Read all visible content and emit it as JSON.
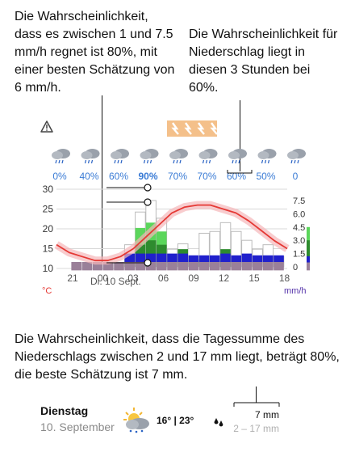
{
  "callouts": {
    "left": "Die Wahrscheinlichkeit, dass es zwischen 1 und 7.5 mm/h regnet ist 80%, mit einer besten Schätzung von 6 mm/h.",
    "right": "Die Wahrscheinlichkeit für Niederschlag liegt in diesen 3 Stunden bei 60%.",
    "bottom": "Die Wahrscheinlichkeit, dass die Tagessumme des Niederschlags zwischen 2 und 17 mm liegt, beträgt 80%, die beste Schätzung ist 7 mm."
  },
  "icons": {
    "warning": "warning-triangle-icon",
    "thunder": "thunderstorm-warning-icon",
    "cloud": "rain-cloud-icon",
    "drops": "raindrops-icon"
  },
  "colors": {
    "temp": "#e53935",
    "temp_band": "#f5b7b9",
    "rain_light": "#5bd65b",
    "rain_dark": "#2e8b2e",
    "rain_blue": "#2020cc",
    "rain_mauve": "#9a8099",
    "prob_text": "#3a7bd5",
    "thunder": "#f0a050"
  },
  "chart_data": {
    "type": "bar",
    "x_labels": [
      "21",
      "00",
      "03",
      "06",
      "09",
      "12",
      "15",
      "18"
    ],
    "date_label": "Di. 10 Sept.",
    "left_axis": {
      "unit": "°C",
      "ticks": [
        "30",
        "25",
        "20",
        "15",
        "10"
      ],
      "ylim": [
        10,
        30
      ]
    },
    "right_axis": {
      "unit": "mm/h",
      "ticks": [
        "7.5",
        "6.0",
        "4.5",
        "3.0",
        "1.5",
        "0"
      ],
      "ylim": [
        0,
        7.5
      ]
    },
    "precip_probability": [
      "0%",
      "40%",
      "60%",
      "90%",
      "70%",
      "70%",
      "60%",
      "50%",
      "0"
    ],
    "precip_probability_strong": [
      false,
      false,
      false,
      true,
      false,
      false,
      false,
      false,
      false
    ],
    "precip_max": [
      0,
      0,
      2.5,
      6.2,
      7.5,
      5.5,
      2.0,
      2.6,
      0.8,
      3.8,
      4.0,
      5.0,
      4.0,
      3.0,
      2.0,
      2.5,
      1.2
    ],
    "precip_best": [
      0,
      0,
      0.6,
      4.4,
      5.0,
      4.0,
      0,
      0,
      0,
      0,
      0,
      0,
      0,
      0,
      0,
      0,
      0
    ],
    "precip_p2": [
      0,
      0,
      0,
      2.5,
      3.0,
      2.5,
      0,
      2.0,
      0.8,
      0.8,
      0.8,
      2.0,
      0.8,
      0,
      0,
      0,
      0
    ],
    "precip_p1": [
      0,
      0,
      1.0,
      1.0,
      1.0,
      1.0,
      1.0,
      1.0,
      0.8,
      0.8,
      0.8,
      1.0,
      0.8,
      1.0,
      0.8,
      0.8,
      0.8
    ],
    "precip_base": [
      0,
      0,
      0,
      0,
      0,
      0,
      0,
      0,
      0,
      0,
      0,
      0,
      0,
      0,
      0,
      0,
      0
    ],
    "mauve_hours": [
      1,
      2,
      3,
      4,
      5,
      6,
      7,
      8,
      9,
      10,
      11,
      12,
      13,
      14,
      15,
      16
    ],
    "temperature": [
      16,
      14,
      13,
      12,
      12,
      13,
      15,
      18,
      21,
      24,
      25.5,
      26,
      26,
      25,
      24,
      22,
      19.5,
      17,
      15
    ],
    "daily": {
      "day": "Dienstag",
      "date": "10. September",
      "temps": "16° | 23°",
      "precip_best": "7 mm",
      "precip_range": "2 – 17 mm"
    }
  }
}
